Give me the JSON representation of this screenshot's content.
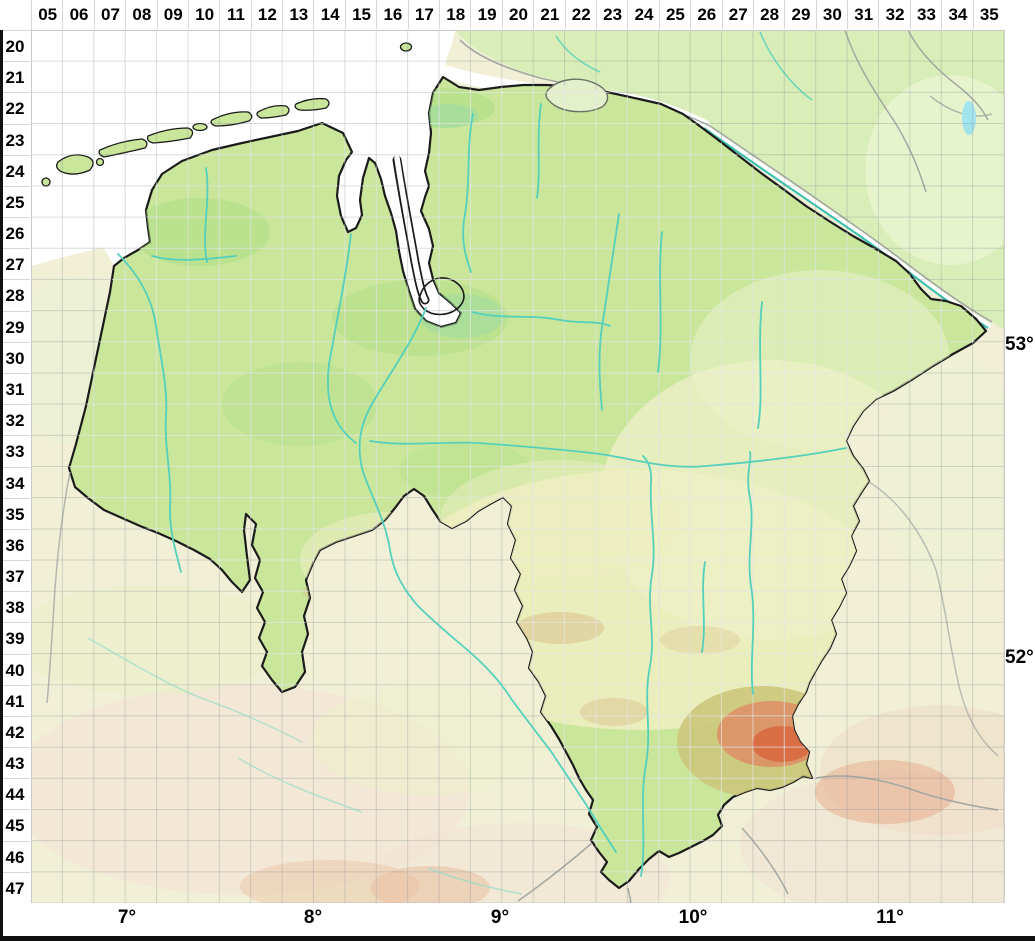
{
  "grid": {
    "column_labels": [
      "05",
      "06",
      "07",
      "08",
      "09",
      "10",
      "11",
      "12",
      "13",
      "14",
      "15",
      "16",
      "17",
      "18",
      "19",
      "20",
      "21",
      "22",
      "23",
      "24",
      "25",
      "26",
      "27",
      "28",
      "29",
      "30",
      "31",
      "32",
      "33",
      "34",
      "35"
    ],
    "row_labels": [
      "20",
      "21",
      "22",
      "23",
      "24",
      "25",
      "26",
      "27",
      "28",
      "29",
      "30",
      "31",
      "32",
      "33",
      "34",
      "35",
      "36",
      "37",
      "38",
      "39",
      "40",
      "41",
      "42",
      "43",
      "44",
      "45",
      "46",
      "47"
    ]
  },
  "geo_labels": {
    "latitude": [
      "53°",
      "52°"
    ],
    "longitude": [
      "7°",
      "8°",
      "9°",
      "10°",
      "11°"
    ]
  },
  "colors": {
    "state_fill": "#c9e69a",
    "neighbor_north_fill": "#d9edb8",
    "outside_fill": "#f1f0d6",
    "sea": "#ffffff",
    "river": "#54d0bb",
    "elbe_river": "#3cc2ac",
    "state_boundary": "#1b1b1b",
    "other_boundary": "#a3a8a2",
    "harz_high": "#d8663f",
    "harz_mid": "#df8a64",
    "harz_base": "#ccc67c",
    "grid_line": "#96a0aa"
  }
}
